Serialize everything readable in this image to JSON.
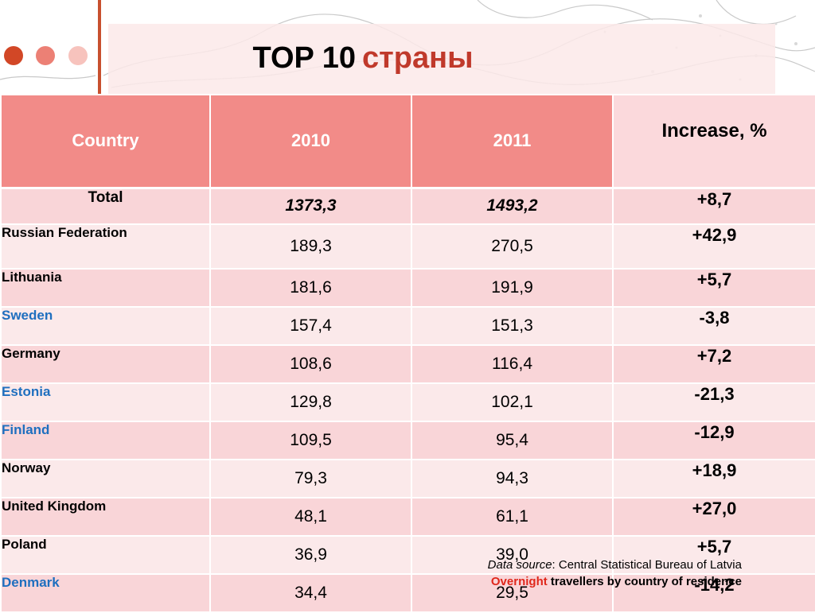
{
  "slide": {
    "title_main": "TOP 10",
    "title_accent": "страны"
  },
  "colors": {
    "header_bg": "#f28b88",
    "row_dark": "#f9d5d8",
    "row_light": "#fbe9ea",
    "accent_red": "#c0392b",
    "country_blue": "#1f6fbf"
  },
  "table": {
    "headers": [
      "Country",
      "2010",
      "2011",
      "Increase, %"
    ],
    "rows": [
      {
        "country": "Total",
        "y2010": "1373,3",
        "y2011": "1493,2",
        "increase": "+8,7"
      },
      {
        "country": "Russian Federation",
        "y2010": "189,3",
        "y2011": "270,5",
        "increase": "+42,9"
      },
      {
        "country": "Lithuania",
        "y2010": "181,6",
        "y2011": "191,9",
        "increase": "+5,7"
      },
      {
        "country": "Sweden",
        "y2010": "157,4",
        "y2011": "151,3",
        "increase": "-3,8"
      },
      {
        "country": "Germany",
        "y2010": "108,6",
        "y2011": "116,4",
        "increase": "+7,2"
      },
      {
        "country": "Estonia",
        "y2010": "129,8",
        "y2011": "102,1",
        "increase": "-21,3"
      },
      {
        "country": "Finland",
        "y2010": "109,5",
        "y2011": "95,4",
        "increase": "-12,9"
      },
      {
        "country": "Norway",
        "y2010": "79,3",
        "y2011": "94,3",
        "increase": "+18,9"
      },
      {
        "country": "United Kingdom",
        "y2010": "48,1",
        "y2011": "61,1",
        "increase": "+27,0"
      },
      {
        "country": "Poland",
        "y2010": "36,9",
        "y2011": "39,0",
        "increase": "+5,7"
      },
      {
        "country": "Denmark",
        "y2010": "34,4",
        "y2011": "29,5",
        "increase": "-14,2"
      }
    ]
  },
  "source": {
    "label": "Data source",
    "text": ": Central Statistical Bureau of Latvia",
    "overnight": "Overnight",
    "rest": " travellers by country of residence"
  }
}
